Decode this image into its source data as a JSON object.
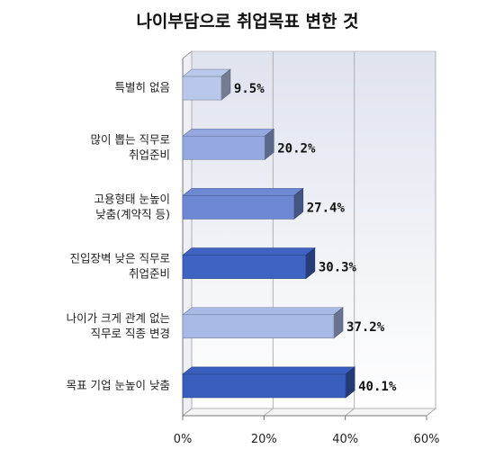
{
  "chart_data": {
    "type": "bar",
    "orientation": "horizontal",
    "title": "나이부담으로 취업목표 변한 것",
    "categories": [
      [
        "특별히 없음"
      ],
      [
        "많이 뽑는 직무로",
        "취업준비"
      ],
      [
        "고용형태 눈높이",
        "낮춤(계약직 등)"
      ],
      [
        "진입장벽 낮은 직무로",
        "취업준비"
      ],
      [
        "나이가 크게 관계 없는",
        "직무로 직종 변경"
      ],
      [
        "목표 기업 눈높이 낮춤"
      ]
    ],
    "values": [
      9.5,
      20.2,
      27.4,
      30.3,
      37.2,
      40.1
    ],
    "value_labels": [
      "9.5%",
      "20.2%",
      "27.4%",
      "30.3%",
      "37.2%",
      "40.1%"
    ],
    "bar_colors": [
      "#b9c8ea",
      "#95a9e0",
      "#6e88d4",
      "#3f63c2",
      "#a9b9e6",
      "#3a5ebe"
    ],
    "xlim": [
      0,
      60
    ],
    "xticks": [
      "0%",
      "20%",
      "40%",
      "60%"
    ],
    "xlabel": "",
    "ylabel": "",
    "grid": true,
    "style": "3d"
  }
}
